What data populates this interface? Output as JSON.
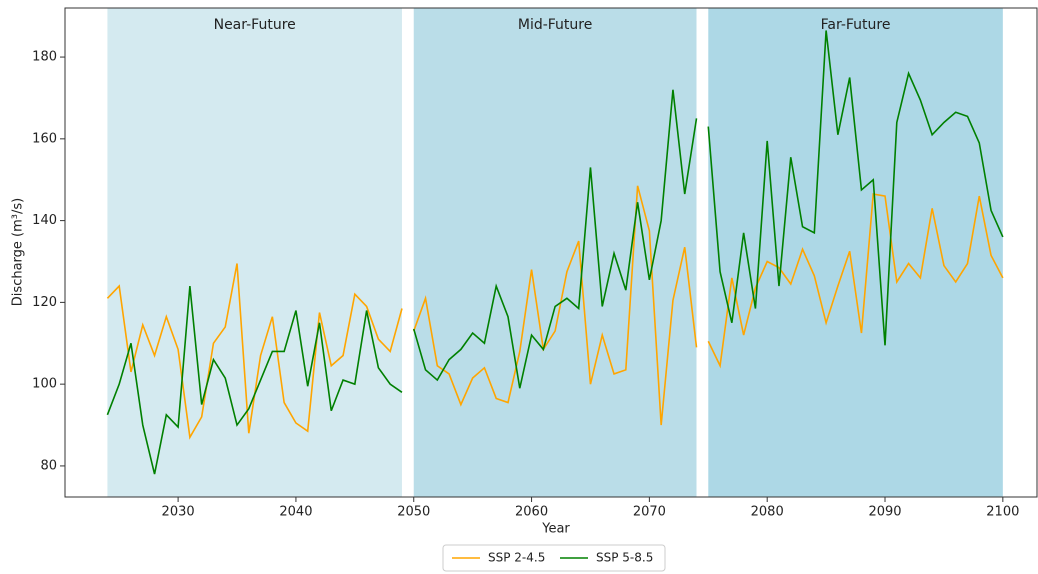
{
  "chart_data": {
    "type": "line",
    "xlabel": "Year",
    "ylabel": "Discharge (m³/s)",
    "xlim": [
      2020.4,
      2102.9
    ],
    "ylim": [
      72.4,
      192
    ],
    "xticks": [
      2030,
      2040,
      2050,
      2060,
      2070,
      2080,
      2090,
      2100
    ],
    "yticks": [
      80,
      100,
      120,
      140,
      160,
      180
    ],
    "legend": "bottom",
    "periods": [
      {
        "name": "Near-Future",
        "start": 2024,
        "end": 2049,
        "color": "#d4eaf0"
      },
      {
        "name": "Mid-Future",
        "start": 2050,
        "end": 2074,
        "color": "#badde8"
      },
      {
        "name": "Far-Future",
        "start": 2075,
        "end": 2100,
        "color": "#add8e6"
      }
    ],
    "x": [
      2024,
      2025,
      2026,
      2027,
      2028,
      2029,
      2030,
      2031,
      2032,
      2033,
      2034,
      2035,
      2036,
      2037,
      2038,
      2039,
      2040,
      2041,
      2042,
      2043,
      2044,
      2045,
      2046,
      2047,
      2048,
      2049,
      2050,
      2051,
      2052,
      2053,
      2054,
      2055,
      2056,
      2057,
      2058,
      2059,
      2060,
      2061,
      2062,
      2063,
      2064,
      2065,
      2066,
      2067,
      2068,
      2069,
      2070,
      2071,
      2072,
      2073,
      2074,
      2075,
      2076,
      2077,
      2078,
      2079,
      2080,
      2081,
      2082,
      2083,
      2084,
      2085,
      2086,
      2087,
      2088,
      2089,
      2090,
      2091,
      2092,
      2093,
      2094,
      2095,
      2096,
      2097,
      2098,
      2099,
      2100
    ],
    "series": [
      {
        "name": "SSP 2-4.5",
        "color": "#ffa500",
        "values": [
          121,
          124,
          103,
          114.5,
          107,
          116.5,
          108.5,
          87,
          92,
          110,
          114,
          129.5,
          88,
          107,
          116.5,
          95.5,
          90.5,
          88.5,
          117.5,
          104.5,
          107,
          122,
          119,
          111,
          108,
          118.5,
          113,
          121,
          104.5,
          102.5,
          95,
          101.5,
          104,
          96.5,
          95.5,
          108,
          128,
          108.5,
          113,
          127.5,
          135,
          100,
          112,
          102.5,
          103.5,
          148.5,
          137.5,
          90,
          120.5,
          133.5,
          109,
          110.5,
          104.5,
          126,
          112,
          123.5,
          130,
          128.5,
          124.5,
          133,
          126.5,
          115,
          124,
          132.5,
          112.5,
          146.5,
          146,
          125,
          129.5,
          126,
          143,
          129,
          125,
          129.5,
          146,
          131.5,
          126
        ]
      },
      {
        "name": "SSP 5-8.5",
        "color": "#008000",
        "values": [
          92.5,
          100,
          110,
          90,
          78,
          92.5,
          89.5,
          124,
          95,
          106,
          101.5,
          90,
          94,
          101,
          108,
          108,
          118,
          99.5,
          115,
          93.5,
          101,
          100,
          118,
          104,
          100,
          98,
          113.5,
          103.5,
          101,
          106,
          108.5,
          112.5,
          110,
          124,
          116.5,
          99,
          112,
          108.5,
          119,
          121,
          118.5,
          153,
          119,
          132,
          123,
          144.5,
          125.5,
          140,
          172,
          146.5,
          165,
          163,
          127.5,
          115,
          137,
          118.5,
          159.5,
          124,
          155.5,
          138.5,
          137,
          186.5,
          161,
          175,
          147.5,
          150,
          109.5,
          164,
          176,
          169.5,
          161,
          164,
          166.5,
          165.5,
          159,
          142.5,
          136
        ]
      }
    ]
  }
}
